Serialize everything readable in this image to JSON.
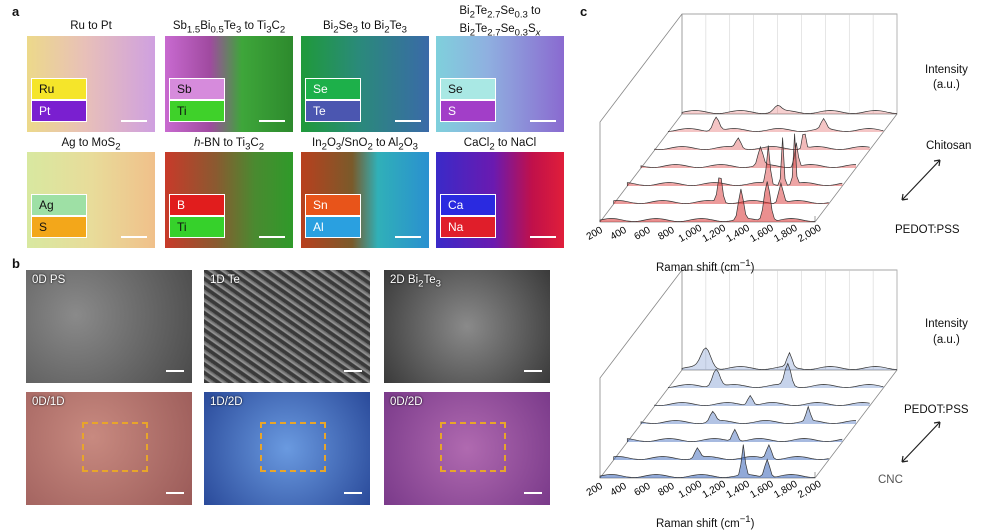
{
  "panel_a": {
    "label": "a",
    "tiles": [
      {
        "title": "Ru to Pt",
        "chips": [
          {
            "text": "Ru",
            "color": "#f5e52a",
            "dark": true
          },
          {
            "text": "Pt",
            "color": "#7a1fd0"
          }
        ],
        "bg": "linear-gradient(90deg,#ecd98a 0%,#e8c0b8 45%,#cfa0e0 100%)"
      },
      {
        "title": "Sb1.5Bi0.5Te3 to Ti3C2",
        "chips": [
          {
            "text": "Sb",
            "color": "#d68bdc",
            "dark": true
          },
          {
            "text": "Ti",
            "color": "#3fd12a",
            "dark": true
          }
        ],
        "bg": "linear-gradient(90deg,#c86ad0 0%,#a04aa0 35%,#3ea63a 60%,#2d8a2d 100%)"
      },
      {
        "title": "Bi2Se3 to Bi2Te3",
        "chips": [
          {
            "text": "Se",
            "color": "#1db04a"
          },
          {
            "text": "Te",
            "color": "#4b56b0"
          }
        ],
        "bg": "linear-gradient(90deg,#1f9a3a 0%,#2a8a7a 45%,#3a6aa8 100%)"
      },
      {
        "title": "Bi2Te2.7Se0.3 to Bi2Te2.7Se0.3Sx",
        "chips": [
          {
            "text": "Se",
            "color": "#a9e8e4",
            "dark": true
          },
          {
            "text": "S",
            "color": "#a23ec8"
          }
        ],
        "bg": "linear-gradient(90deg,#7fd0dc 0%,#8fb0e0 40%,#8a6ad0 100%)"
      },
      {
        "title": "Ag to MoS2",
        "chips": [
          {
            "text": "Ag",
            "color": "#9ee0a5",
            "dark": true
          },
          {
            "text": "S",
            "color": "#f3a71a",
            "dark": true
          }
        ],
        "bg": "linear-gradient(90deg,#d8e8a0 0%,#e8dc9a 50%,#f0c08a 100%)"
      },
      {
        "title": "h-BN to Ti3C2",
        "chips": [
          {
            "text": "B",
            "color": "#e11d1d"
          },
          {
            "text": "Ti",
            "color": "#36d12b",
            "dark": true
          }
        ],
        "bg": "linear-gradient(90deg,#c83a2a 0%,#8a5a30 40%,#4a8a30 70%,#2f9a2a 100%)"
      },
      {
        "title": "In2O3/SnO2 to Al2O3",
        "chips": [
          {
            "text": "Sn",
            "color": "#e8541a"
          },
          {
            "text": "Al",
            "color": "#2aa0e0"
          }
        ],
        "bg": "linear-gradient(90deg,#b8401e 0%,#7a5a2a 40%,#30b0b8 60%,#2a90d0 100%)"
      },
      {
        "title": "CaCl2 to NaCl",
        "chips": [
          {
            "text": "Ca",
            "color": "#2a2ae0"
          },
          {
            "text": "Na",
            "color": "#e01e2a"
          }
        ],
        "bg": "linear-gradient(90deg,#3a2ac8 0%,#6a1ab0 45%,#c0104a 75%,#e01e3a 100%)"
      }
    ]
  },
  "panel_b": {
    "label": "b",
    "tiles": [
      {
        "label": "0D PS",
        "bg": "radial-gradient(circle at 30% 40%,#8a8a8a,#4a4a4a)"
      },
      {
        "label": "1D Te",
        "bg": "repeating-linear-gradient(35deg,#3a3a3a 0,#3a3a3a 3px,#9a9a9a 4px,#5a5a5a 7px)"
      },
      {
        "label": "2D Bi2Te3",
        "bg": "radial-gradient(circle at 50% 50%,#8a8a8a,#3a3a3a)"
      },
      {
        "label": "0D/1D",
        "bg": "radial-gradient(circle at 40% 40%,#c88a80,#9a5a58)"
      },
      {
        "label": "1D/2D",
        "bg": "radial-gradient(circle at 50% 50%,#6a9ae0,#2a4a9a)"
      },
      {
        "label": "0D/2D",
        "bg": "radial-gradient(circle at 50% 50%,#b06ab0,#7a3a8a)"
      }
    ]
  },
  "panel_c": {
    "label": "c",
    "top": {
      "intensity": "Intensity",
      "au": "(a.u.)",
      "end_top": "Chitosan",
      "end_bottom": "PEDOT:PSS",
      "color": "#d62828"
    },
    "bottom": {
      "intensity": "Intensity",
      "au": "(a.u.)",
      "end_top": "PEDOT:PSS",
      "end_bottom": "CNC",
      "color": "#2d5bb5"
    },
    "xaxis_title": "Raman shift (cm−1)",
    "ticks": [
      "200",
      "400",
      "600",
      "800",
      "1,000",
      "1,200",
      "1,400",
      "1,600",
      "1,800",
      "2,000"
    ]
  }
}
